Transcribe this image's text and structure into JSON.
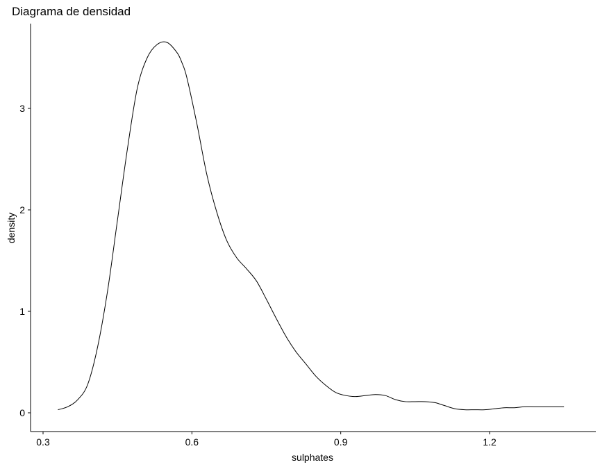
{
  "chart_data": {
    "type": "line",
    "title": "Diagrama de densidad",
    "xlabel": "sulphates",
    "ylabel": "density",
    "xlim": [
      0.3,
      1.36
    ],
    "ylim": [
      0,
      3.85
    ],
    "x_ticks": [
      "0.3",
      "0.6",
      "0.9",
      "1.2"
    ],
    "y_ticks": [
      "0",
      "1",
      "2",
      "3"
    ],
    "x_tick_values": [
      0.3,
      0.6,
      0.9,
      1.2
    ],
    "y_tick_values": [
      0,
      1,
      2,
      3
    ],
    "grid": false,
    "legend": "none",
    "line_color": "#000000",
    "series": [
      {
        "x": [
          0.33,
          0.35,
          0.37,
          0.39,
          0.41,
          0.43,
          0.45,
          0.47,
          0.49,
          0.51,
          0.53,
          0.55,
          0.57,
          0.58,
          0.59,
          0.61,
          0.63,
          0.65,
          0.67,
          0.69,
          0.71,
          0.73,
          0.75,
          0.77,
          0.79,
          0.81,
          0.83,
          0.85,
          0.87,
          0.89,
          0.91,
          0.93,
          0.95,
          0.97,
          0.99,
          1.01,
          1.03,
          1.05,
          1.07,
          1.09,
          1.11,
          1.13,
          1.15,
          1.17,
          1.19,
          1.21,
          1.23,
          1.25,
          1.27,
          1.29,
          1.31,
          1.33,
          1.35
        ],
        "y": [
          0.03,
          0.06,
          0.13,
          0.28,
          0.65,
          1.2,
          1.9,
          2.6,
          3.2,
          3.5,
          3.63,
          3.65,
          3.55,
          3.45,
          3.3,
          2.85,
          2.35,
          1.98,
          1.7,
          1.53,
          1.42,
          1.3,
          1.12,
          0.93,
          0.75,
          0.6,
          0.48,
          0.36,
          0.27,
          0.2,
          0.17,
          0.16,
          0.17,
          0.18,
          0.17,
          0.13,
          0.11,
          0.11,
          0.11,
          0.1,
          0.07,
          0.04,
          0.03,
          0.03,
          0.03,
          0.04,
          0.05,
          0.05,
          0.06,
          0.06,
          0.06,
          0.06,
          0.06
        ]
      }
    ]
  }
}
